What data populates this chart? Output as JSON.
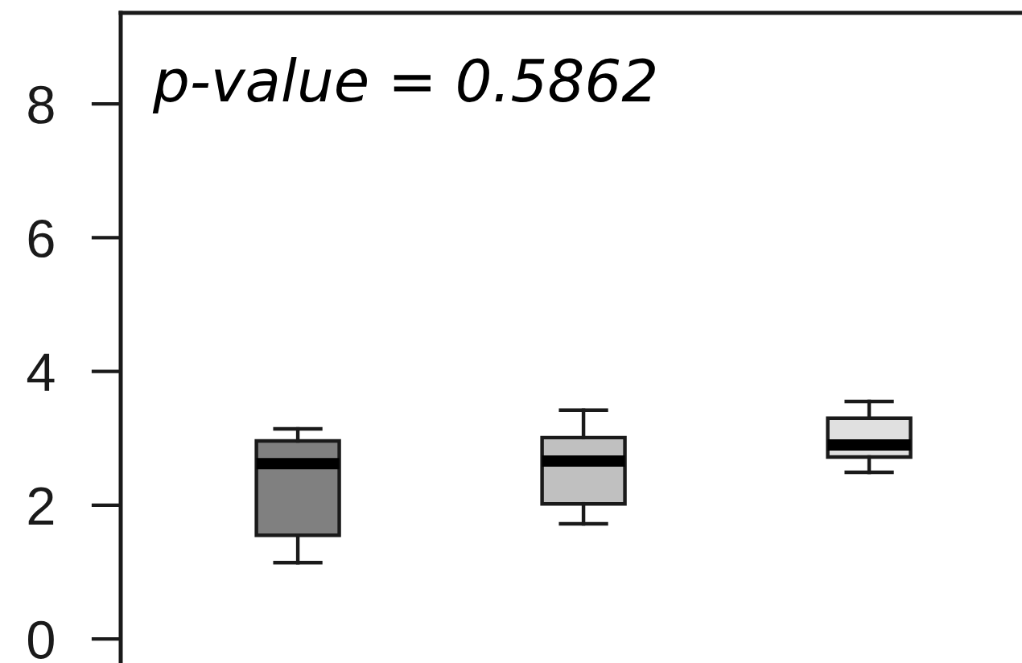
{
  "chart_data": {
    "type": "box",
    "categories": [
      null,
      null,
      null
    ],
    "boxes": [
      {
        "low": 1.14,
        "q1": 1.55,
        "median": 2.62,
        "q3": 2.96,
        "high": 3.14
      },
      {
        "low": 1.72,
        "q1": 2.02,
        "median": 2.66,
        "q3": 3.01,
        "high": 3.42
      },
      {
        "low": 2.49,
        "q1": 2.72,
        "median": 2.9,
        "q3": 3.3,
        "high": 3.55
      }
    ],
    "colors": [
      "#808080",
      "#c0c0c0",
      "#e0e0e0"
    ],
    "ylim": [
      -0.36,
      9.36
    ],
    "yticks": [
      0,
      2,
      4,
      6,
      8
    ],
    "tick_labels": "y",
    "annotations": [
      "p-value = 0.5862"
    ]
  }
}
